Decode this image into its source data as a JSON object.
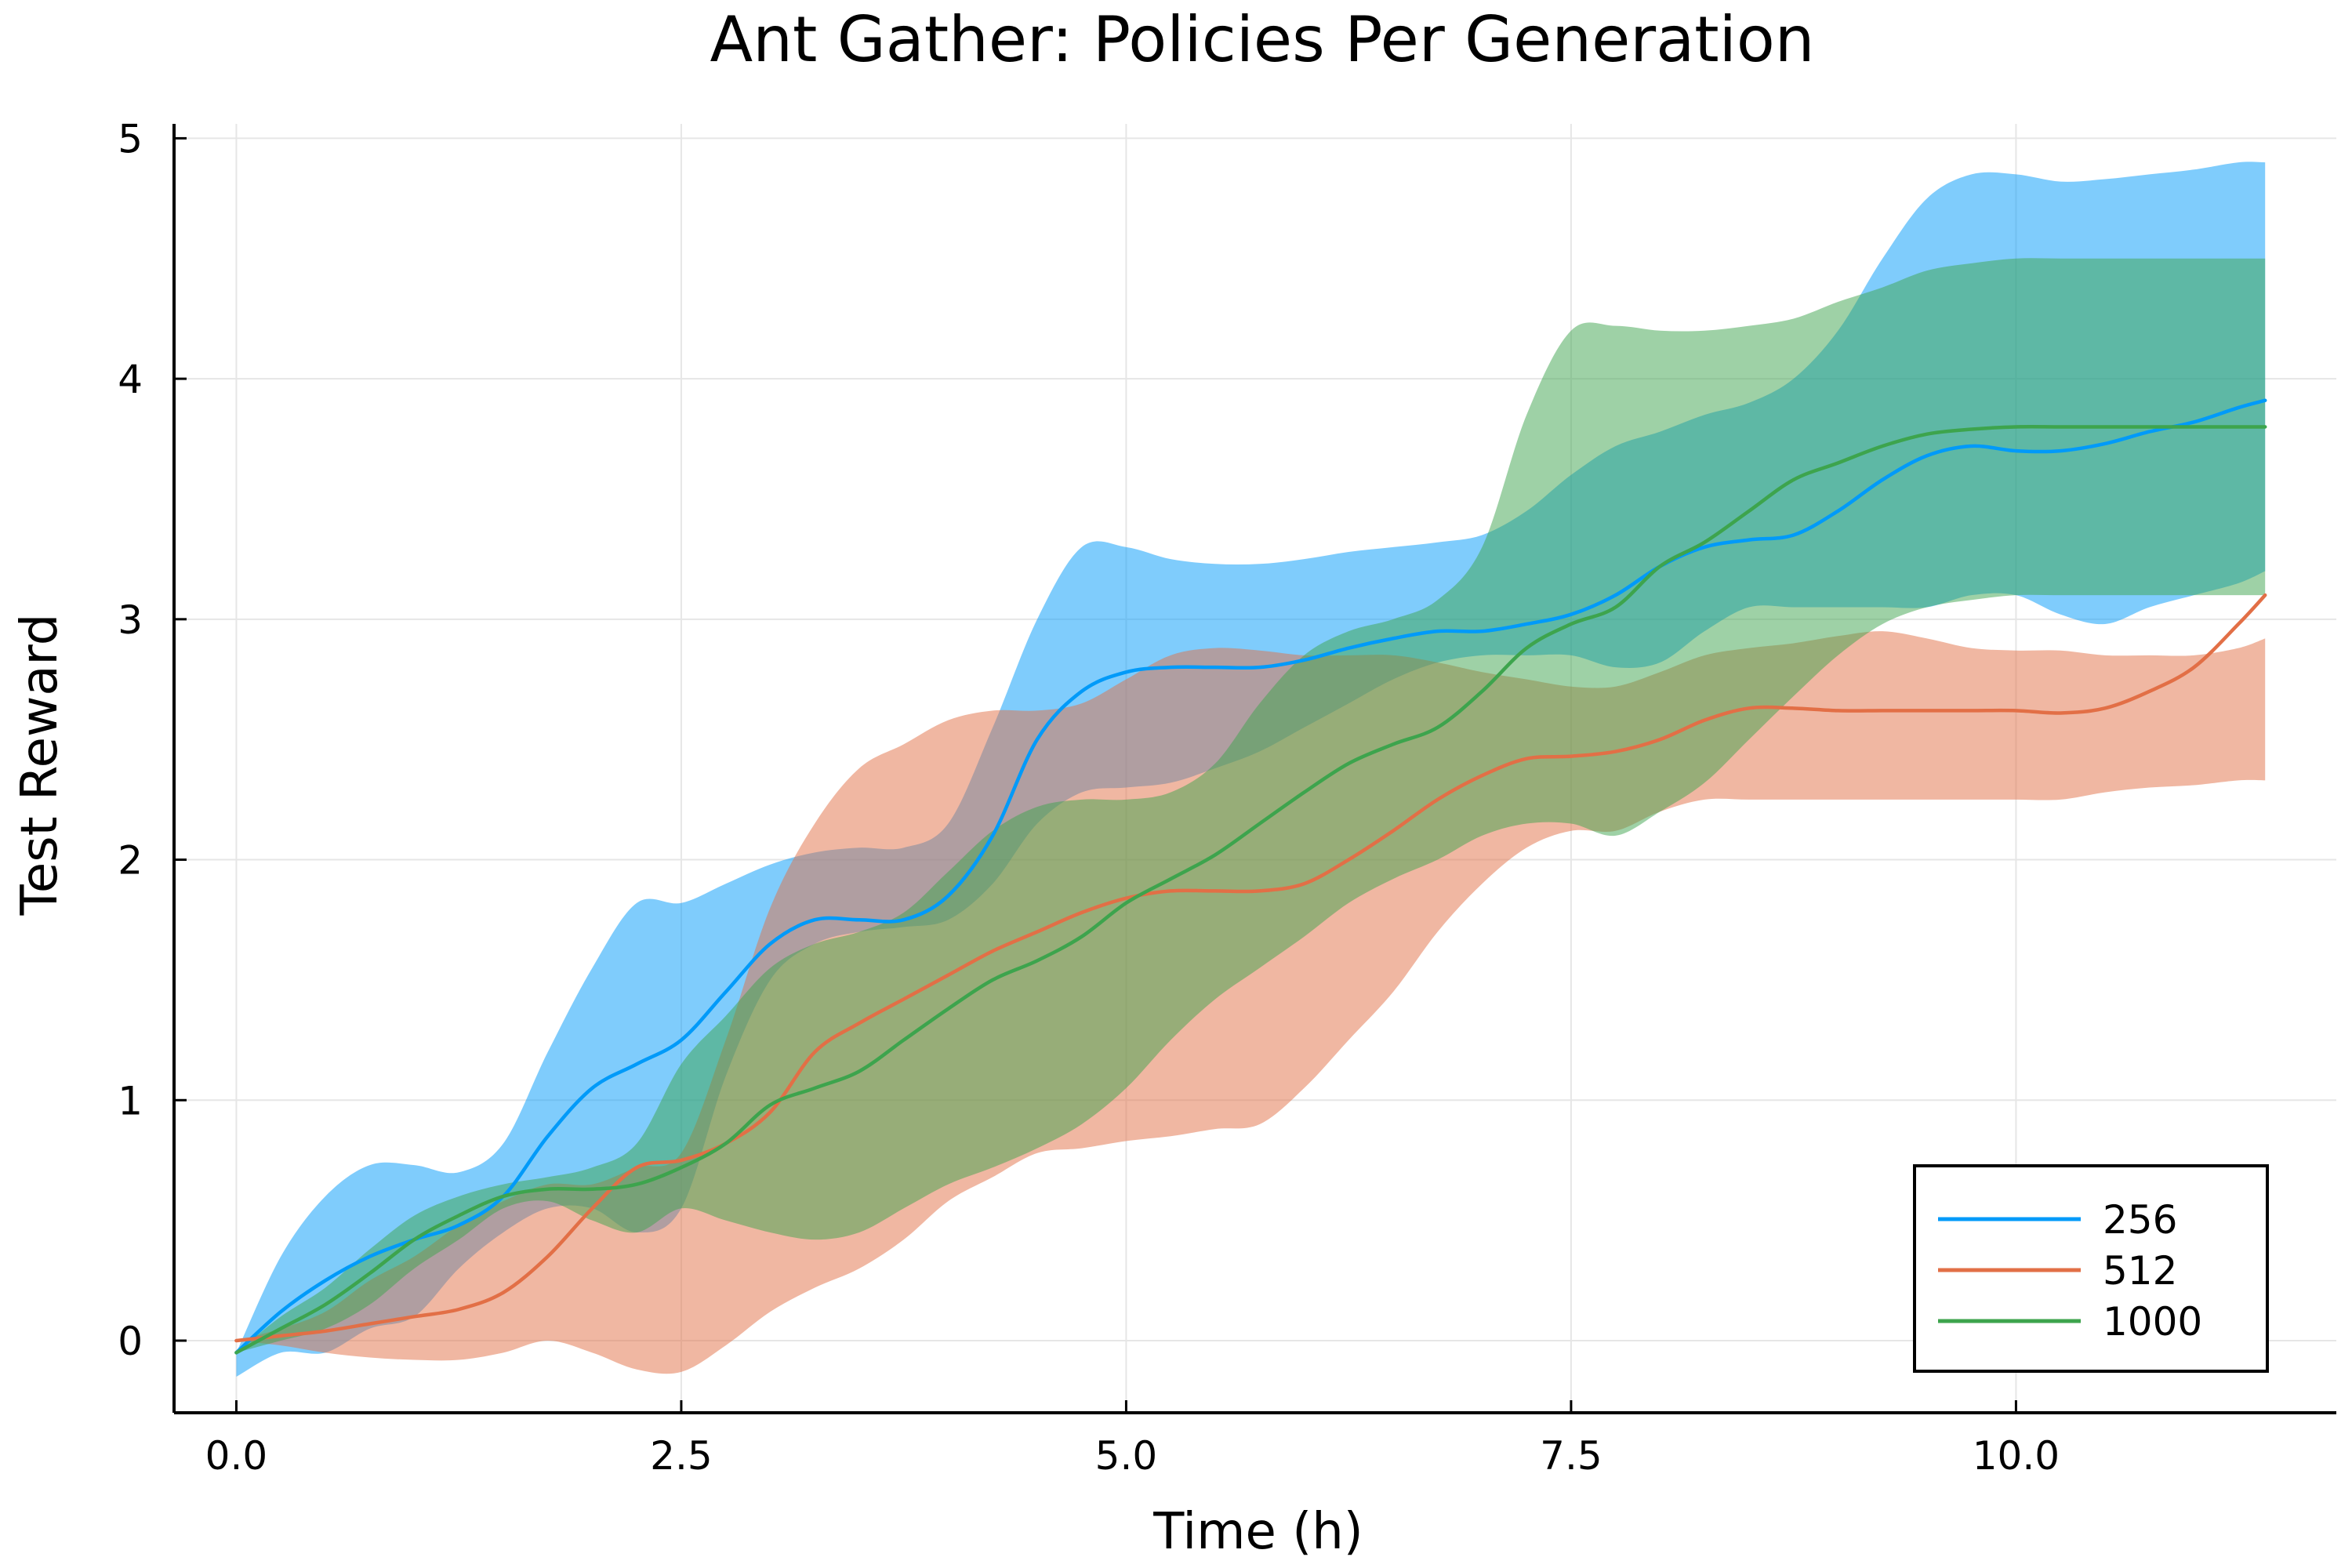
{
  "chart_data": {
    "type": "line",
    "title": "Ant Gather: Policies Per Generation",
    "xlabel": "Time (h)",
    "ylabel": "Test Reward",
    "xlim": [
      -0.35,
      11.8
    ],
    "ylim": [
      -0.3,
      5.06
    ],
    "xticks": [
      0,
      2.5,
      5,
      7.5,
      10
    ],
    "xtick_labels": [
      "0.0",
      "2.5",
      "5.0",
      "7.5",
      "10.0"
    ],
    "yticks": [
      0,
      1,
      2,
      3,
      4,
      5
    ],
    "ytick_labels": [
      "0",
      "1",
      "2",
      "3",
      "4",
      "5"
    ],
    "grid": true,
    "legend_position": "bottom-right",
    "x": [
      0,
      0.25,
      0.5,
      0.75,
      1.0,
      1.25,
      1.5,
      1.75,
      2.0,
      2.25,
      2.5,
      2.75,
      3.0,
      3.25,
      3.5,
      3.75,
      4.0,
      4.25,
      4.5,
      4.75,
      5.0,
      5.25,
      5.5,
      5.75,
      6.0,
      6.25,
      6.5,
      6.75,
      7.0,
      7.25,
      7.5,
      7.75,
      8.0,
      8.25,
      8.5,
      8.75,
      9.0,
      9.25,
      9.5,
      9.75,
      10.0,
      10.25,
      10.5,
      10.75,
      11.0,
      11.25,
      11.4
    ],
    "series": [
      {
        "name": "256",
        "color": "#009af9",
        "band_color": "#009af9",
        "values": [
          -0.05,
          0.12,
          0.25,
          0.35,
          0.42,
          0.48,
          0.6,
          0.85,
          1.05,
          1.15,
          1.25,
          1.45,
          1.65,
          1.75,
          1.75,
          1.75,
          1.85,
          2.1,
          2.5,
          2.7,
          2.78,
          2.8,
          2.8,
          2.8,
          2.83,
          2.88,
          2.92,
          2.95,
          2.95,
          2.98,
          3.02,
          3.1,
          3.22,
          3.3,
          3.33,
          3.35,
          3.45,
          3.58,
          3.68,
          3.72,
          3.7,
          3.7,
          3.73,
          3.78,
          3.82,
          3.88,
          3.91
        ],
        "lower": [
          -0.15,
          -0.05,
          -0.05,
          0.05,
          0.1,
          0.3,
          0.45,
          0.55,
          0.55,
          0.45,
          0.55,
          1.1,
          1.5,
          1.65,
          1.7,
          1.72,
          1.75,
          1.9,
          2.15,
          2.28,
          2.3,
          2.32,
          2.38,
          2.45,
          2.55,
          2.65,
          2.75,
          2.82,
          2.85,
          2.85,
          2.85,
          2.8,
          2.82,
          2.95,
          3.05,
          3.05,
          3.05,
          3.05,
          3.05,
          3.1,
          3.1,
          3.02,
          2.98,
          3.05,
          3.1,
          3.15,
          3.2
        ],
        "upper": [
          -0.05,
          0.35,
          0.6,
          0.73,
          0.73,
          0.7,
          0.82,
          1.2,
          1.55,
          1.82,
          1.82,
          1.9,
          1.98,
          2.03,
          2.05,
          2.05,
          2.15,
          2.55,
          3.0,
          3.3,
          3.3,
          3.25,
          3.23,
          3.23,
          3.25,
          3.28,
          3.3,
          3.32,
          3.35,
          3.45,
          3.6,
          3.72,
          3.78,
          3.85,
          3.9,
          4.0,
          4.2,
          4.5,
          4.75,
          4.85,
          4.85,
          4.82,
          4.83,
          4.85,
          4.87,
          4.9,
          4.9
        ]
      },
      {
        "name": "512",
        "color": "#e26f46",
        "band_color": "#e26f46",
        "values": [
          0.0,
          0.02,
          0.04,
          0.07,
          0.1,
          0.13,
          0.2,
          0.35,
          0.55,
          0.72,
          0.75,
          0.82,
          0.95,
          1.2,
          1.32,
          1.42,
          1.52,
          1.62,
          1.7,
          1.78,
          1.84,
          1.87,
          1.87,
          1.87,
          1.9,
          2.0,
          2.12,
          2.25,
          2.35,
          2.42,
          2.43,
          2.45,
          2.5,
          2.58,
          2.63,
          2.63,
          2.62,
          2.62,
          2.62,
          2.62,
          2.62,
          2.61,
          2.63,
          2.7,
          2.8,
          2.98,
          3.1
        ],
        "lower": [
          0.0,
          -0.02,
          -0.05,
          -0.07,
          -0.08,
          -0.08,
          -0.05,
          0.0,
          -0.05,
          -0.12,
          -0.13,
          -0.02,
          0.12,
          0.22,
          0.3,
          0.42,
          0.58,
          0.68,
          0.78,
          0.8,
          0.83,
          0.85,
          0.88,
          0.9,
          1.05,
          1.25,
          1.45,
          1.7,
          1.9,
          2.05,
          2.12,
          2.12,
          2.2,
          2.25,
          2.25,
          2.25,
          2.25,
          2.25,
          2.25,
          2.25,
          2.25,
          2.25,
          2.28,
          2.3,
          2.31,
          2.33,
          2.33
        ],
        "upper": [
          0.0,
          0.05,
          0.12,
          0.25,
          0.35,
          0.48,
          0.58,
          0.65,
          0.65,
          0.72,
          0.78,
          1.25,
          1.8,
          2.15,
          2.38,
          2.48,
          2.58,
          2.62,
          2.62,
          2.65,
          2.75,
          2.85,
          2.88,
          2.87,
          2.85,
          2.85,
          2.85,
          2.82,
          2.78,
          2.75,
          2.72,
          2.72,
          2.78,
          2.85,
          2.88,
          2.9,
          2.93,
          2.95,
          2.92,
          2.88,
          2.87,
          2.87,
          2.85,
          2.85,
          2.85,
          2.88,
          2.92
        ]
      },
      {
        "name": "1000",
        "color": "#3da44d",
        "band_color": "#3da44d",
        "values": [
          -0.05,
          0.05,
          0.15,
          0.28,
          0.42,
          0.52,
          0.6,
          0.63,
          0.63,
          0.65,
          0.72,
          0.82,
          0.98,
          1.05,
          1.12,
          1.25,
          1.38,
          1.5,
          1.58,
          1.68,
          1.82,
          1.92,
          2.02,
          2.15,
          2.28,
          2.4,
          2.48,
          2.55,
          2.7,
          2.88,
          2.98,
          3.05,
          3.22,
          3.32,
          3.45,
          3.58,
          3.65,
          3.72,
          3.77,
          3.79,
          3.8,
          3.8,
          3.8,
          3.8,
          3.8,
          3.8,
          3.8
        ],
        "lower": [
          -0.05,
          0.0,
          0.05,
          0.15,
          0.3,
          0.42,
          0.55,
          0.58,
          0.5,
          0.45,
          0.55,
          0.5,
          0.45,
          0.42,
          0.45,
          0.55,
          0.65,
          0.72,
          0.8,
          0.9,
          1.05,
          1.25,
          1.42,
          1.55,
          1.68,
          1.82,
          1.92,
          2.0,
          2.1,
          2.15,
          2.15,
          2.1,
          2.2,
          2.32,
          2.5,
          2.68,
          2.85,
          2.98,
          3.05,
          3.08,
          3.1,
          3.1,
          3.1,
          3.1,
          3.1,
          3.1,
          3.1
        ],
        "upper": [
          -0.05,
          0.1,
          0.22,
          0.38,
          0.52,
          0.6,
          0.65,
          0.68,
          0.72,
          0.82,
          1.15,
          1.35,
          1.55,
          1.65,
          1.7,
          1.78,
          1.95,
          2.12,
          2.22,
          2.25,
          2.25,
          2.28,
          2.4,
          2.65,
          2.85,
          2.95,
          3.0,
          3.08,
          3.3,
          3.85,
          4.2,
          4.22,
          4.2,
          4.2,
          4.22,
          4.25,
          4.32,
          4.38,
          4.45,
          4.48,
          4.5,
          4.5,
          4.5,
          4.5,
          4.5,
          4.5,
          4.5
        ]
      }
    ]
  }
}
